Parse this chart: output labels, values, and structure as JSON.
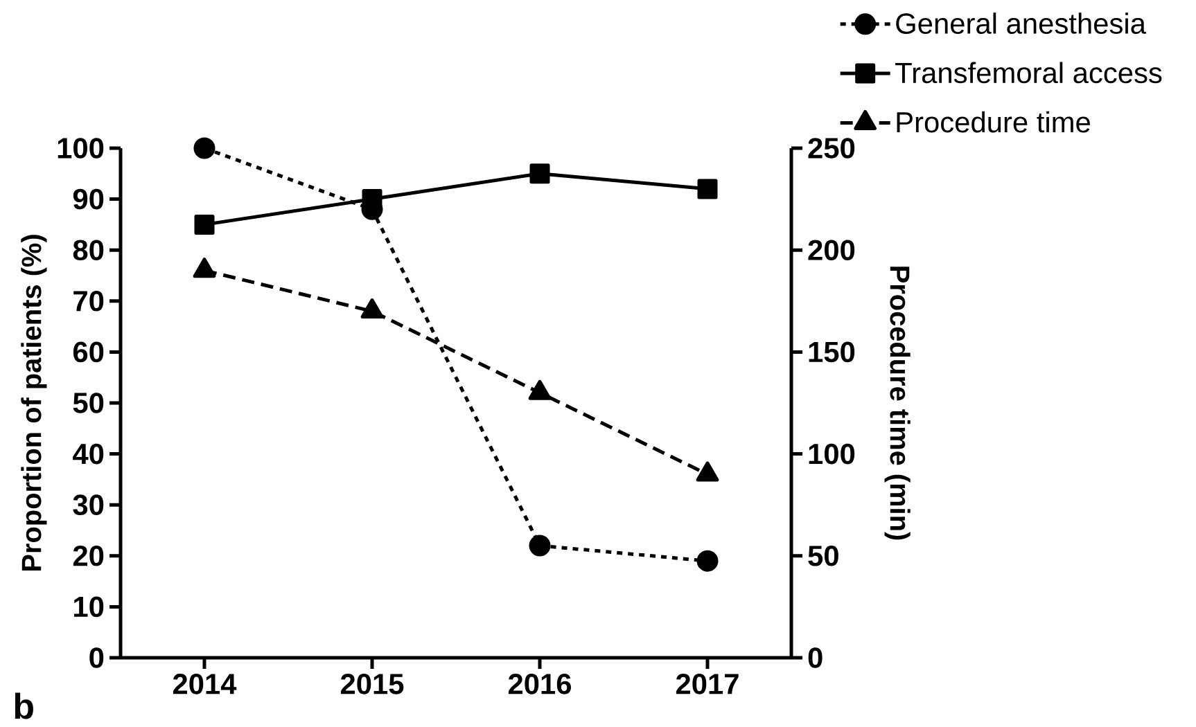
{
  "chart_data": {
    "type": "line",
    "categories": [
      "2014",
      "2015",
      "2016",
      "2017"
    ],
    "series": [
      {
        "name": "General anesthesia",
        "color": "#000000",
        "values": [
          100,
          88,
          22,
          19
        ],
        "marker": "circle",
        "line_style": "dotted"
      },
      {
        "name": "Transfemoral access",
        "color": "#000000",
        "values": [
          85,
          90,
          95,
          92
        ],
        "marker": "square",
        "line_style": "solid"
      },
      {
        "name": "Procedure time",
        "color": "#000000",
        "values": [
          190,
          170,
          130,
          90
        ],
        "marker": "triangle",
        "line_style": "dashed",
        "axis": "y2"
      }
    ],
    "ylabel": "Proportion of patients (%)",
    "y2label": "Procedure time (min)",
    "ylim": [
      0,
      100
    ],
    "yticks": [
      0,
      10,
      20,
      30,
      40,
      50,
      60,
      70,
      80,
      90,
      100
    ],
    "y2lim": [
      0,
      250
    ],
    "y2ticks": [
      0,
      50,
      100,
      150,
      200,
      250
    ],
    "legend": "top right",
    "annotations": [
      "b"
    ]
  }
}
